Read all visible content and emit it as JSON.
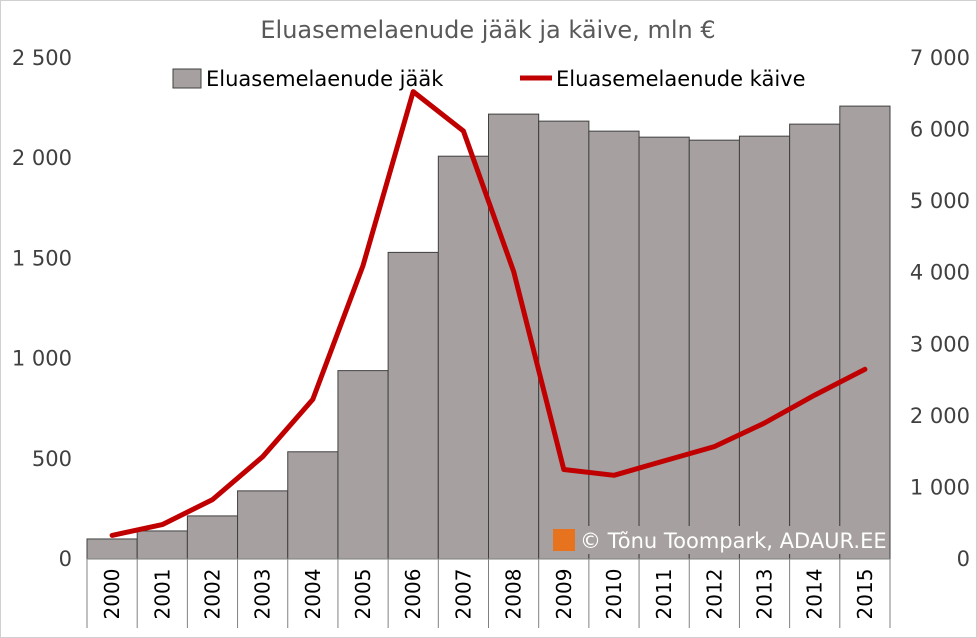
{
  "chart_data": {
    "type": "bar+line",
    "title": "Eluasemelaenude jääk ja käive, mln €",
    "categories": [
      "2000",
      "2001",
      "2002",
      "2003",
      "2004",
      "2005",
      "2006",
      "2007",
      "2008",
      "2009",
      "2010",
      "2011",
      "2012",
      "2013",
      "2014",
      "2015"
    ],
    "series": [
      {
        "name": "Eluasemelaenude jääk",
        "type": "bar",
        "axis": "left",
        "color": "#A6A0A0",
        "values": [
          100,
          140,
          215,
          340,
          535,
          940,
          1530,
          2010,
          2220,
          2185,
          2135,
          2105,
          2090,
          2110,
          2170,
          2260
        ]
      },
      {
        "name": "Eluasemelaenude käive",
        "type": "line",
        "axis": "right",
        "color": "#C00000",
        "values": [
          330,
          480,
          830,
          1430,
          2230,
          4100,
          6530,
          5980,
          4020,
          1250,
          1170,
          1370,
          1570,
          1900,
          2290,
          2650
        ]
      }
    ],
    "y_left": {
      "min": 0,
      "max": 2500,
      "step": 500,
      "tick_labels": [
        "0",
        "500",
        "1 000",
        "1 500",
        "2 000",
        "2 500"
      ]
    },
    "y_right": {
      "min": 0,
      "max": 7000,
      "step": 1000,
      "tick_labels": [
        "0",
        "1 000",
        "2 000",
        "3 000",
        "4 000",
        "5 000",
        "6 000",
        "7 000"
      ]
    },
    "grid": false,
    "legend_position": "top",
    "copyright": "© Tõnu Toompark, ADAUR.EE",
    "copyright_colors": {
      "box": "#A6A0A0",
      "icon": "#E8731E"
    }
  }
}
